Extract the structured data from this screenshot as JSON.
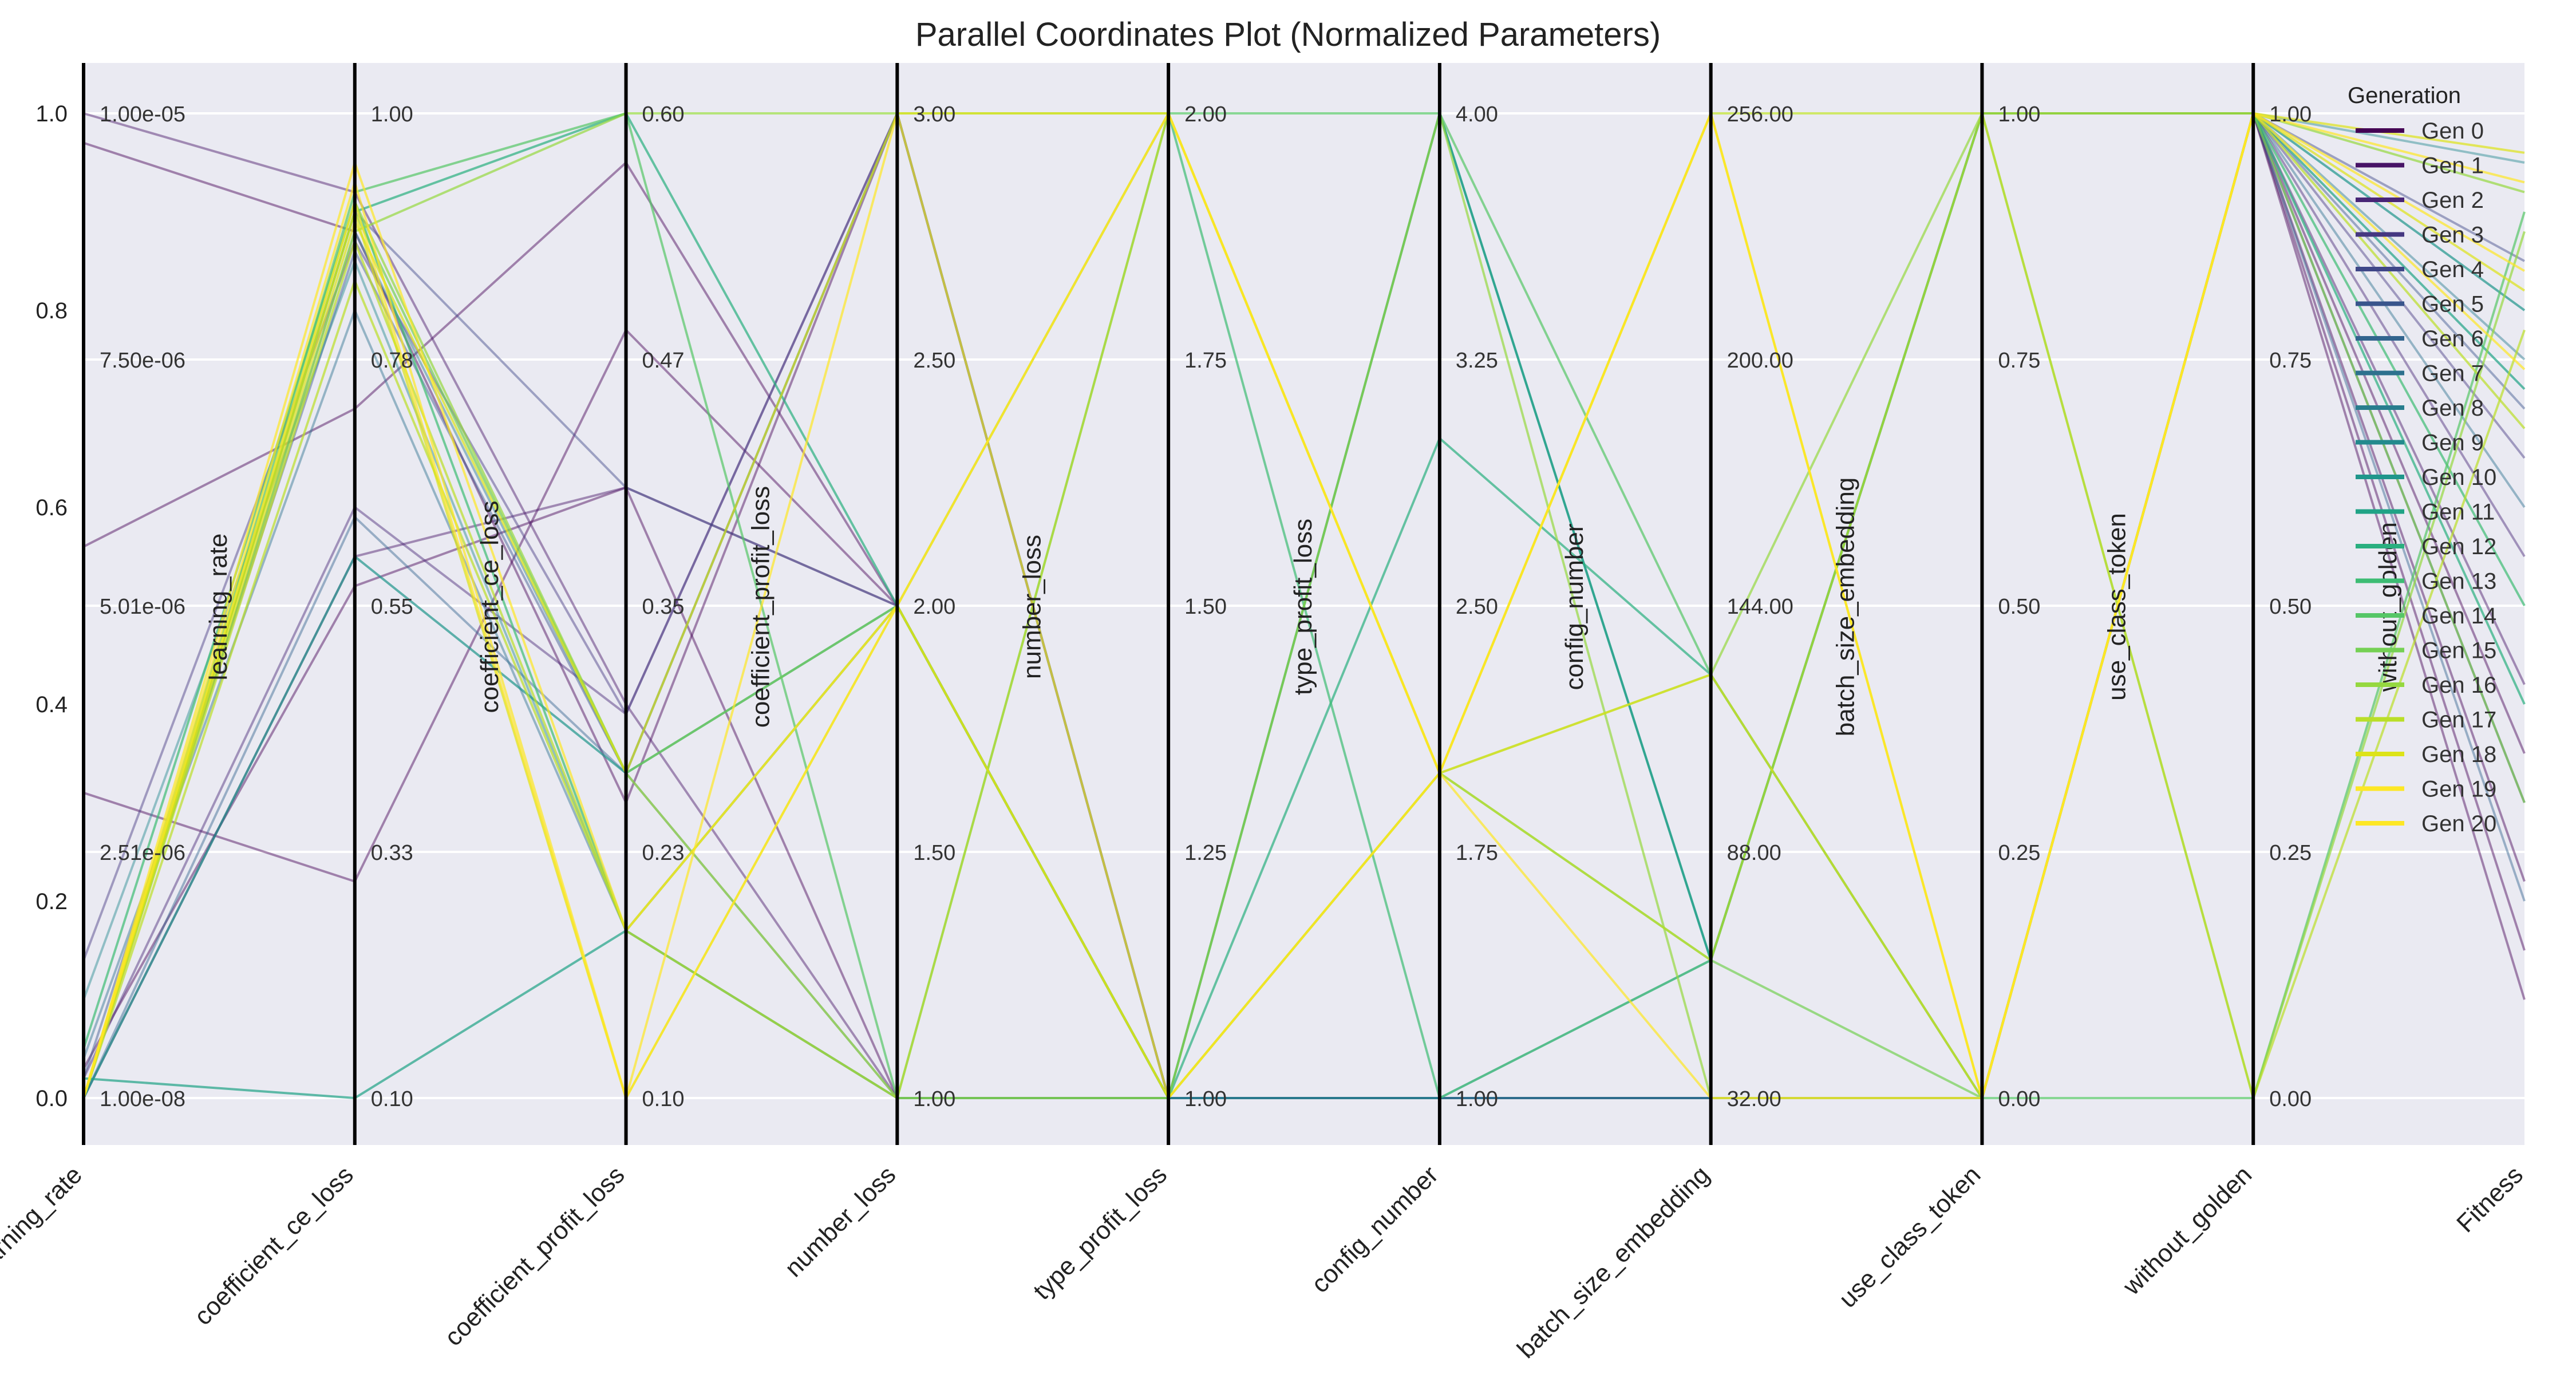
{
  "chart_data": {
    "type": "parallel-coordinates",
    "title": "Parallel Coordinates Plot (Normalized Parameters)",
    "y_axis": {
      "ylim": [
        0.0,
        1.0
      ],
      "ticks": [
        "0.0",
        "0.2",
        "0.4",
        "0.6",
        "0.8",
        "1.0"
      ]
    },
    "background": "#eaeaf2",
    "grid": true,
    "axes": [
      {
        "name": "learning_rate",
        "inner_label": "learning_rate",
        "ticks": [
          "1.00e-08",
          "2.51e-06",
          "5.01e-06",
          "7.50e-06",
          "1.00e-05"
        ]
      },
      {
        "name": "coefficient_ce_loss",
        "inner_label": "coefficient_ce_loss",
        "ticks": [
          "0.10",
          "0.33",
          "0.55",
          "0.78",
          "1.00"
        ]
      },
      {
        "name": "coefficient_profit_loss",
        "inner_label": "coefficient_profit_loss",
        "ticks": [
          "0.10",
          "0.23",
          "0.35",
          "0.47",
          "0.60"
        ]
      },
      {
        "name": "number_loss",
        "inner_label": "number_loss",
        "ticks": [
          "1.00",
          "1.50",
          "2.00",
          "2.50",
          "3.00"
        ]
      },
      {
        "name": "type_profit_loss",
        "inner_label": "type_profit_loss",
        "ticks": [
          "1.00",
          "1.25",
          "1.50",
          "1.75",
          "2.00"
        ]
      },
      {
        "name": "config_number",
        "inner_label": "config_number",
        "ticks": [
          "1.00",
          "1.75",
          "2.50",
          "3.25",
          "4.00"
        ]
      },
      {
        "name": "batch_size_embedding",
        "inner_label": "batch_size_embedding",
        "ticks": [
          "32.00",
          "88.00",
          "144.00",
          "200.00",
          "256.00"
        ]
      },
      {
        "name": "use_class_token",
        "inner_label": "use_class_token",
        "ticks": [
          "0.00",
          "0.25",
          "0.50",
          "0.75",
          "1.00"
        ]
      },
      {
        "name": "without_golden",
        "inner_label": "without_golden",
        "ticks": [
          "0.00",
          "0.25",
          "0.50",
          "0.75",
          "1.00"
        ]
      },
      {
        "name": "Fitness",
        "inner_label": "",
        "ticks": []
      }
    ],
    "legend": {
      "title": "Generation",
      "placement": "top-right",
      "entries": [
        "Gen 0",
        "Gen 1",
        "Gen 2",
        "Gen 3",
        "Gen 4",
        "Gen 5",
        "Gen 6",
        "Gen 7",
        "Gen 8",
        "Gen 9",
        "Gen 10",
        "Gen 11",
        "Gen 12",
        "Gen 13",
        "Gen 14",
        "Gen 15",
        "Gen 16",
        "Gen 17",
        "Gen 18",
        "Gen 19",
        "Gen 20"
      ],
      "colors": [
        "#440154",
        "#481467",
        "#482576",
        "#453781",
        "#3f4788",
        "#39558c",
        "#32648e",
        "#2d718e",
        "#287d8e",
        "#238a8d",
        "#1f968b",
        "#20a386",
        "#29af7f",
        "#3dbc74",
        "#56c667",
        "#75d054",
        "#95d840",
        "#bade28",
        "#dde318",
        "#fde725",
        "#fde725"
      ]
    },
    "series": [
      {
        "generation": 0,
        "values": [
          0.03,
          0.52,
          0.62,
          0.0,
          0.0,
          0.0,
          0.0,
          0.0,
          1.0,
          0.15
        ]
      },
      {
        "generation": 0,
        "values": [
          0.97,
          0.88,
          0.3,
          1.0,
          0.0,
          0.0,
          0.0,
          0.0,
          1.0,
          0.22
        ]
      },
      {
        "generation": 0,
        "values": [
          0.56,
          0.7,
          0.95,
          0.5,
          0.0,
          0.0,
          0.0,
          0.0,
          1.0,
          0.35
        ]
      },
      {
        "generation": 0,
        "values": [
          0.31,
          0.22,
          0.78,
          0.5,
          0.0,
          0.0,
          0.0,
          0.0,
          1.0,
          0.1
        ]
      },
      {
        "generation": 1,
        "values": [
          0.0,
          0.55,
          0.62,
          0.5,
          0.0,
          0.0,
          0.0,
          0.0,
          1.0,
          0.42
        ]
      },
      {
        "generation": 1,
        "values": [
          1.0,
          0.92,
          0.4,
          0.0,
          0.0,
          0.0,
          0.0,
          0.0,
          1.0,
          0.3
        ]
      },
      {
        "generation": 2,
        "values": [
          0.02,
          0.6,
          0.39,
          1.0,
          0.0,
          0.0,
          0.0,
          0.0,
          1.0,
          0.55
        ]
      },
      {
        "generation": 3,
        "values": [
          0.14,
          0.87,
          0.39,
          1.0,
          0.0,
          0.0,
          0.0,
          0.0,
          1.0,
          0.65
        ]
      },
      {
        "generation": 4,
        "values": [
          0.0,
          0.9,
          0.62,
          0.5,
          0.0,
          0.0,
          0.0,
          0.0,
          1.0,
          0.85
        ]
      },
      {
        "generation": 5,
        "values": [
          0.02,
          0.86,
          0.33,
          1.0,
          0.0,
          0.0,
          0.0,
          0.0,
          1.0,
          0.7
        ]
      },
      {
        "generation": 6,
        "values": [
          0.0,
          0.59,
          0.33,
          0.0,
          0.0,
          0.0,
          0.0,
          0.0,
          1.0,
          0.2
        ]
      },
      {
        "generation": 7,
        "values": [
          0.04,
          0.8,
          0.17,
          0.5,
          0.0,
          0.0,
          0.0,
          0.0,
          1.0,
          0.6
        ]
      },
      {
        "generation": 8,
        "values": [
          0.0,
          0.88,
          0.33,
          1.0,
          0.0,
          0.0,
          0.0,
          0.0,
          1.0,
          0.75
        ]
      },
      {
        "generation": 9,
        "values": [
          0.1,
          0.85,
          0.17,
          0.0,
          0.0,
          0.0,
          0.14,
          1.0,
          1.0,
          0.95
        ]
      },
      {
        "generation": 10,
        "values": [
          0.0,
          0.55,
          0.33,
          0.5,
          0.0,
          1.0,
          0.14,
          1.0,
          1.0,
          0.8
        ]
      },
      {
        "generation": 11,
        "values": [
          0.02,
          0.0,
          0.17,
          0.0,
          0.0,
          1.0,
          0.14,
          1.0,
          1.0,
          0.72
        ]
      },
      {
        "generation": 12,
        "values": [
          0.0,
          0.9,
          1.0,
          0.5,
          0.0,
          0.67,
          0.43,
          0.0,
          1.0,
          0.4
        ]
      },
      {
        "generation": 13,
        "values": [
          0.05,
          0.91,
          0.17,
          0.5,
          1.0,
          0.0,
          0.14,
          1.0,
          1.0,
          0.5
        ]
      },
      {
        "generation": 14,
        "values": [
          0.0,
          0.92,
          1.0,
          0.0,
          1.0,
          1.0,
          0.43,
          0.0,
          0.0,
          0.9
        ]
      },
      {
        "generation": 15,
        "values": [
          0.0,
          0.9,
          0.33,
          0.5,
          0.0,
          0.33,
          0.14,
          0.0,
          1.0,
          0.3
        ]
      },
      {
        "generation": 16,
        "values": [
          0.0,
          0.88,
          1.0,
          1.0,
          1.0,
          0.33,
          0.43,
          1.0,
          0.0,
          0.88
        ]
      },
      {
        "generation": 16,
        "values": [
          0.0,
          0.91,
          0.33,
          0.0,
          0.0,
          1.0,
          0.0,
          0.0,
          1.0,
          0.92
        ]
      },
      {
        "generation": 17,
        "values": [
          0.0,
          0.87,
          0.17,
          0.5,
          0.0,
          0.33,
          1.0,
          1.0,
          1.0,
          0.68
        ]
      },
      {
        "generation": 17,
        "values": [
          0.0,
          0.83,
          0.17,
          0.0,
          1.0,
          0.33,
          0.14,
          1.0,
          0.0,
          0.78
        ]
      },
      {
        "generation": 18,
        "values": [
          0.0,
          0.9,
          0.0,
          0.5,
          0.0,
          0.33,
          0.43,
          0.0,
          1.0,
          0.96
        ]
      },
      {
        "generation": 18,
        "values": [
          0.0,
          0.89,
          0.33,
          1.0,
          1.0,
          0.33,
          1.0,
          0.0,
          1.0,
          0.82
        ]
      },
      {
        "generation": 19,
        "values": [
          0.0,
          0.91,
          0.0,
          0.5,
          1.0,
          0.33,
          1.0,
          0.0,
          1.0,
          0.74
        ]
      },
      {
        "generation": 20,
        "values": [
          0.0,
          0.93,
          0.0,
          1.0,
          0.0,
          0.33,
          0.0,
          0.0,
          1.0,
          0.84
        ]
      },
      {
        "generation": 20,
        "values": [
          0.0,
          0.95,
          0.17,
          0.5,
          1.0,
          0.33,
          1.0,
          0.0,
          1.0,
          0.93
        ]
      }
    ]
  }
}
